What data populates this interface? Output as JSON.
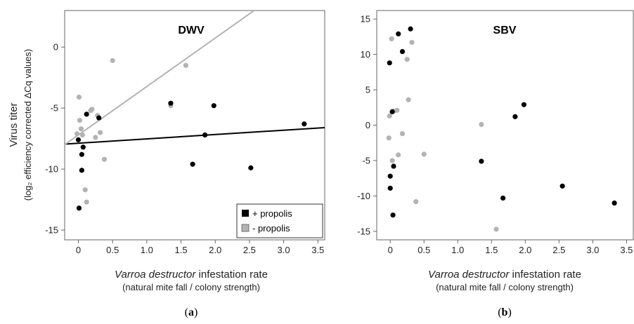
{
  "chart_data": [
    {
      "type": "scatter",
      "panel_label": "(a)",
      "title": "DWV",
      "ylabel": "Virus titer",
      "ylabel_sub": "(log₂ efficiency corrected ΔCq values)",
      "xlabel_italic": "Varroa destructor",
      "xlabel_rest": " infestation rate",
      "xlabel_sub": "(natural mite fall / colony strength)",
      "xlim": [
        -0.2,
        3.6
      ],
      "ylim": [
        -15.8,
        3.0
      ],
      "xticks": [
        0,
        0.5,
        1.0,
        1.5,
        2.0,
        2.5,
        3.0,
        3.5
      ],
      "xtick_labels": [
        "0",
        "0.5",
        "1.0",
        "1.5",
        "2.0",
        "2.5",
        "3.0",
        "3.5"
      ],
      "yticks": [
        0,
        -5,
        -10,
        -15
      ],
      "ytick_labels": [
        "0",
        "-5",
        "-10",
        "-15"
      ],
      "legend": {
        "position": "bottom-right",
        "entries": [
          {
            "label": "+ propolis",
            "color": "#000000",
            "marker": "square"
          },
          {
            "label": "- propolis",
            "color": "#b3b3b3",
            "marker": "square"
          }
        ]
      },
      "series": [
        {
          "name": "+ propolis",
          "color": "#000000",
          "x": [
            0.0,
            0.01,
            0.05,
            0.05,
            0.07,
            0.12,
            0.3,
            1.35,
            1.67,
            1.85,
            1.98,
            2.52,
            3.3
          ],
          "y": [
            -7.6,
            -13.2,
            -10.1,
            -8.8,
            -8.2,
            -5.5,
            -5.8,
            -4.6,
            -9.6,
            -7.2,
            -4.8,
            -9.9,
            -6.3
          ]
        },
        {
          "name": "- propolis",
          "color": "#b3b3b3",
          "x": [
            -0.02,
            0.01,
            0.02,
            0.04,
            0.06,
            0.1,
            0.12,
            0.18,
            0.2,
            0.25,
            0.28,
            0.32,
            0.38,
            0.5,
            1.35,
            1.57
          ],
          "y": [
            -7.1,
            -4.1,
            -6.0,
            -6.7,
            -7.2,
            -11.7,
            -12.7,
            -5.2,
            -5.1,
            -7.4,
            -5.6,
            -7.0,
            -9.2,
            -1.1,
            -4.8,
            -1.5
          ]
        }
      ],
      "trend_lines": [
        {
          "series": "+ propolis",
          "color": "#000000",
          "x": [
            -0.2,
            3.6
          ],
          "y": [
            -7.95,
            -6.6
          ]
        },
        {
          "series": "- propolis",
          "color": "#b3b3b3",
          "x": [
            -0.2,
            3.6
          ],
          "y": [
            -8.0,
            7.1
          ]
        }
      ]
    },
    {
      "type": "scatter",
      "panel_label": "(b)",
      "title": "SBV",
      "ylabel": "",
      "xlabel_italic": "Varroa destructor",
      "xlabel_rest": " infestation rate",
      "xlabel_sub": "(natural mite fall / colony strength)",
      "xlim": [
        -0.2,
        3.6
      ],
      "ylim": [
        -16.2,
        16.2
      ],
      "xticks": [
        0,
        0.5,
        1.0,
        1.5,
        2.0,
        2.5,
        3.0,
        3.5
      ],
      "xtick_labels": [
        "0",
        "0.5",
        "1.0",
        "1.5",
        "2.0",
        "2.5",
        "3.0",
        "3.5"
      ],
      "yticks": [
        15,
        10,
        5,
        0,
        -5,
        -10,
        -15
      ],
      "ytick_labels": [
        "15",
        "10",
        "5",
        "0",
        "-5",
        "-10",
        "-15"
      ],
      "series": [
        {
          "name": "+ propolis",
          "color": "#000000",
          "x": [
            -0.01,
            0.0,
            0.03,
            0.04,
            0.05,
            0.12,
            0.18,
            0.3,
            1.35,
            1.67,
            1.85,
            1.98,
            2.55,
            3.32
          ],
          "y": [
            8.8,
            -7.2,
            1.9,
            -12.7,
            -5.8,
            12.9,
            10.4,
            13.6,
            -5.1,
            -10.3,
            1.2,
            2.9,
            -8.6,
            -11.0
          ],
          "extra": [
            {
              "x": 0.0,
              "y": -8.9
            }
          ]
        },
        {
          "name": "- propolis",
          "color": "#b3b3b3",
          "x": [
            -0.02,
            -0.01,
            0.02,
            0.03,
            0.05,
            0.1,
            0.12,
            0.18,
            0.25,
            0.27,
            0.32,
            0.38,
            0.5,
            1.35,
            1.57
          ],
          "y": [
            -1.8,
            1.3,
            12.2,
            -5.0,
            2.0,
            2.1,
            -4.2,
            -1.2,
            9.3,
            3.6,
            11.7,
            -10.8,
            -4.1,
            0.1,
            -14.7
          ]
        }
      ]
    }
  ]
}
